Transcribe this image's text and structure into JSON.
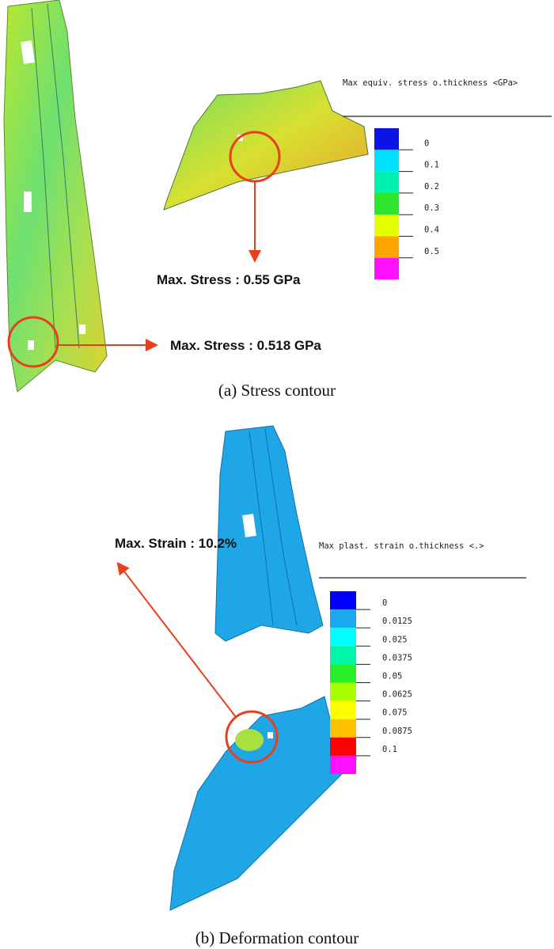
{
  "panel_a": {
    "caption": "(a) Stress contour",
    "legend_title": "Max equiv. stress o.thickness <GPa>",
    "legend_labels": [
      "0",
      "0.1",
      "0.2",
      "0.3",
      "0.4",
      "0.5"
    ],
    "legend_colors": [
      "#0a14e6",
      "#00e0ff",
      "#00f0b0",
      "#2ee62e",
      "#e6ff00",
      "#ffa500",
      "#ff10ff"
    ],
    "annotation_upper": "Max. Stress : 0.55 GPa",
    "annotation_lower": "Max. Stress : 0.518 GPa"
  },
  "panel_b": {
    "caption": "(b) Deformation contour",
    "legend_title": "Max plast. strain o.thickness <.>",
    "legend_labels": [
      "0",
      "0.0125",
      "0.025",
      "0.0375",
      "0.05",
      "0.0625",
      "0.075",
      "0.0875",
      "0.1"
    ],
    "legend_colors": [
      "#0000ff",
      "#1aa8f0",
      "#00ffff",
      "#00f5a8",
      "#28f028",
      "#a8ff00",
      "#ffff00",
      "#ffc000",
      "#ff0000",
      "#ff10ff"
    ],
    "annotation": "Max. Strain : 10.2%"
  },
  "colors": {
    "callout": "#e8401c"
  }
}
